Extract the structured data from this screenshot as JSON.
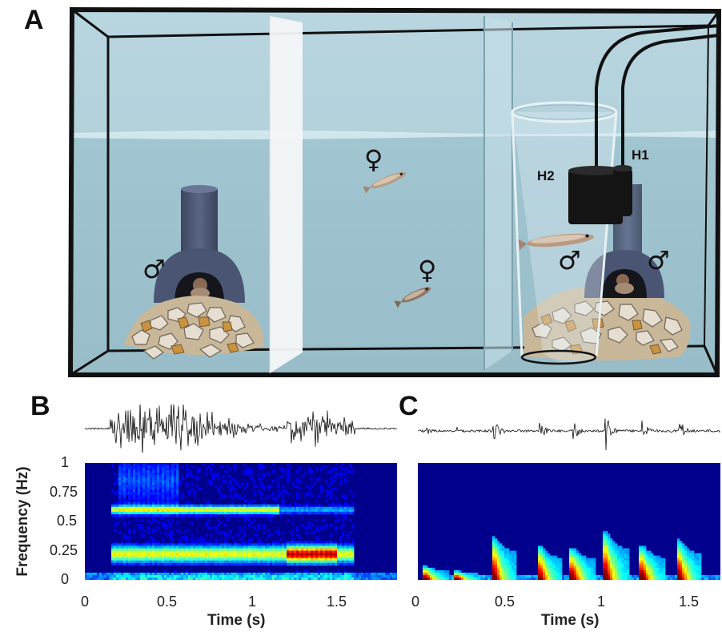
{
  "panels": {
    "a": {
      "letter": "A",
      "hydrophone1": "H1",
      "hydrophone2": "H2",
      "male_symbol": "♂",
      "female_symbol": "♀"
    },
    "b": {
      "letter": "B"
    },
    "c": {
      "letter": "C"
    }
  },
  "axes": {
    "ylabel": "Frequency (Hz)",
    "xlabel": "Time (s)",
    "yticks": [
      "1",
      "0.75",
      "0.5",
      "0.25",
      "0"
    ],
    "xticks_b": [
      "0",
      "0.5",
      "1",
      "1.5"
    ],
    "xticks_c": [
      "0",
      "0.5",
      "1",
      "1.5"
    ]
  },
  "colors": {
    "water": "#a9ccd7",
    "frame": "#111111",
    "spec_background": "#00008c"
  },
  "chart_data": [
    {
      "type": "heatmap",
      "panel": "B",
      "xlabel": "Time (s)",
      "ylabel": "Frequency (Hz)",
      "xlim": [
        0,
        1.85
      ],
      "ylim": [
        0,
        1
      ],
      "sound_onset_s": 0.15,
      "sound_offset_s": 1.6,
      "dominant_band_hz": [
        0.15,
        0.35
      ],
      "secondary_band_hz": [
        0.55,
        0.65
      ],
      "peak_energy_time_s": [
        1.2,
        1.5
      ]
    },
    {
      "type": "heatmap",
      "panel": "C",
      "xlabel": "Time (s)",
      "ylabel": "Frequency (Hz)",
      "xlim": [
        0,
        1.65
      ],
      "ylim": [
        0,
        1
      ],
      "pulse_times_s": [
        0.05,
        0.22,
        0.42,
        0.67,
        0.85,
        1.03,
        1.23,
        1.43
      ],
      "pulse_peak_freq_hz": [
        0.12,
        0.08,
        0.38,
        0.3,
        0.28,
        0.42,
        0.3,
        0.35
      ]
    }
  ]
}
